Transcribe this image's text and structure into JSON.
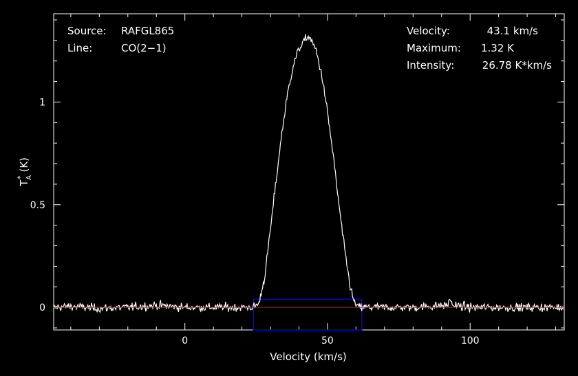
{
  "chart_data": {
    "type": "line",
    "xlabel": "Velocity (km/s)",
    "ylabel": {
      "base": "T",
      "sub": "A",
      "sup": "*",
      "unit": "(K)"
    },
    "xlim": [
      -46,
      133
    ],
    "ylim": [
      -0.11,
      1.43
    ],
    "x_ticks": [
      0,
      50,
      100
    ],
    "y_ticks": [
      {
        "value": 0,
        "label": "0"
      },
      {
        "value": 0.5,
        "label": "0.5"
      },
      {
        "value": 1,
        "label": "1"
      }
    ],
    "grid": false,
    "annotations_left": [
      {
        "key": "Source:",
        "value": "RAFGL865"
      },
      {
        "key": "Line:",
        "value": "CO(2−1)"
      }
    ],
    "annotations_right": [
      {
        "key": "Velocity:",
        "value": "43.1 km/s"
      },
      {
        "key": "Maximum:",
        "value": "1.32 K"
      },
      {
        "key": "Intensity:",
        "value": "26.78 K*km/s"
      }
    ],
    "series": [
      {
        "color": "#ffffff",
        "noise_rms": 0.01,
        "x": [
          -46,
          -40,
          -30,
          -20,
          -10,
          0,
          10,
          20,
          24,
          26,
          28,
          30,
          32,
          34,
          36,
          38,
          40,
          42,
          43,
          44,
          46,
          48,
          50,
          52,
          54,
          56,
          58,
          59,
          60,
          61,
          62,
          70,
          80,
          92,
          93,
          94,
          100,
          110,
          120,
          133
        ],
        "y": [
          0,
          0.005,
          -0.005,
          0,
          0.01,
          0,
          0,
          0,
          0,
          0.02,
          0.15,
          0.38,
          0.62,
          0.85,
          1.04,
          1.18,
          1.26,
          1.3,
          1.32,
          1.31,
          1.25,
          1.13,
          0.95,
          0.74,
          0.5,
          0.28,
          0.1,
          0.04,
          0.01,
          0,
          0,
          0,
          0,
          0.01,
          0.04,
          0.01,
          0,
          0,
          0,
          0
        ]
      }
    ],
    "baseline": {
      "value": 0,
      "color": "#ff0000"
    },
    "window": {
      "x_start": 24,
      "x_end": 62,
      "y_low": -0.11,
      "y_high": 0.04,
      "color": "#0000ff"
    },
    "axis_color": "#ffffff",
    "background": "#000000"
  }
}
